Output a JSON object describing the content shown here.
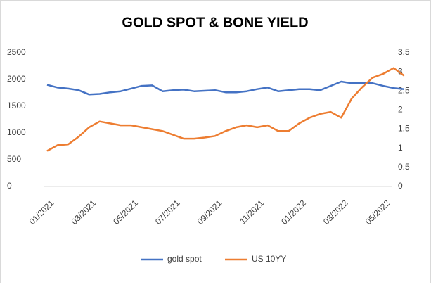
{
  "chart_data": {
    "type": "line",
    "title": "GOLD SPOT & BONE YIELD",
    "categories": [
      "01/2021",
      null,
      null,
      null,
      "03/2021",
      null,
      null,
      null,
      "05/2021",
      null,
      null,
      null,
      "07/2021",
      null,
      null,
      null,
      "09/2021",
      null,
      null,
      null,
      "11/2021",
      null,
      null,
      null,
      "01/2022",
      null,
      null,
      null,
      "03/2022",
      null,
      null,
      null,
      "05/2022",
      null,
      null
    ],
    "series": [
      {
        "name": "gold spot",
        "color": "#4472c4",
        "values": [
          1900,
          1850,
          1830,
          1800,
          1720,
          1730,
          1760,
          1780,
          1830,
          1880,
          1890,
          1780,
          1800,
          1810,
          1780,
          1790,
          1800,
          1760,
          1760,
          1780,
          1820,
          1850,
          1780,
          1800,
          1820,
          1820,
          1800,
          1880,
          1960,
          1930,
          1940,
          1930,
          1880,
          1840,
          1820
        ]
      },
      {
        "name": "US 10YY",
        "color": "#ed7d31",
        "axis": "y2",
        "values": [
          0.93,
          1.08,
          1.1,
          1.3,
          1.55,
          1.7,
          1.65,
          1.6,
          1.6,
          1.55,
          1.5,
          1.45,
          1.35,
          1.25,
          1.25,
          1.28,
          1.32,
          1.45,
          1.55,
          1.6,
          1.55,
          1.6,
          1.45,
          1.45,
          1.65,
          1.8,
          1.9,
          1.95,
          1.8,
          2.3,
          2.6,
          2.85,
          2.95,
          3.1,
          2.9
        ]
      }
    ],
    "ylim": [
      0,
      2500
    ],
    "yticks": [
      0,
      500,
      1000,
      1500,
      2000,
      2500
    ],
    "y2lim": [
      0,
      3.5
    ],
    "y2ticks": [
      0,
      0.5,
      1,
      1.5,
      2,
      2.5,
      3,
      3.5
    ],
    "grid": false,
    "legend": "bottom"
  }
}
